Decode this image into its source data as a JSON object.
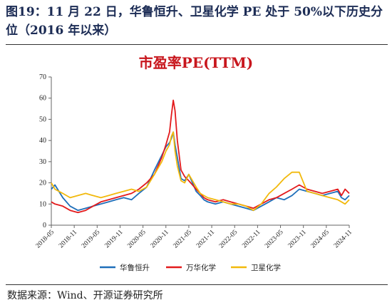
{
  "figure_title": "图19：11 月 22 日，华鲁恒升、卫星化学 PE 处于 50%以下历史分位（2016 年以来）",
  "source": "数据来源：Wind、开源证券研究所",
  "colors": {
    "s1": "#1f6fba",
    "s2": "#e31a1c",
    "s3": "#f2b90c",
    "title": "#c8161d"
  },
  "chart_data": {
    "type": "line",
    "title": "市盈率PE(TTM)",
    "xlabel": "",
    "ylabel": "",
    "ylim": [
      0,
      70
    ],
    "yticks": [
      0,
      10,
      20,
      30,
      40,
      50,
      60,
      70
    ],
    "xlim": [
      2018.42,
      2024.92
    ],
    "xticks": [
      "2018-05",
      "2018-11",
      "2019-05",
      "2019-11",
      "2020-05",
      "2020-11",
      "2021-05",
      "2021-11",
      "2022-05",
      "2022-11",
      "2023-05",
      "2023-11",
      "2024-05",
      "2024-11"
    ],
    "grid": false,
    "legend": "bottom",
    "x": [
      2018.42,
      2018.5,
      2018.67,
      2018.83,
      2019.0,
      2019.17,
      2019.33,
      2019.5,
      2019.67,
      2019.83,
      2020.0,
      2020.17,
      2020.33,
      2020.5,
      2020.67,
      2020.83,
      2020.92,
      2021.0,
      2021.04,
      2021.08,
      2021.12,
      2021.17,
      2021.25,
      2021.33,
      2021.42,
      2021.5,
      2021.58,
      2021.67,
      2021.75,
      2021.83,
      2022.0,
      2022.17,
      2022.33,
      2022.5,
      2022.67,
      2022.83,
      2023.0,
      2023.17,
      2023.33,
      2023.5,
      2023.67,
      2023.83,
      2024.0,
      2024.17,
      2024.33,
      2024.5,
      2024.67,
      2024.75,
      2024.83,
      2024.92
    ],
    "series": [
      {
        "name": "华鲁恒升",
        "color": "s1",
        "values": [
          17,
          19,
          13,
          9,
          7,
          8,
          9,
          10,
          11,
          12,
          13,
          12,
          15,
          18,
          26,
          33,
          37,
          39,
          41,
          44,
          38,
          32,
          22,
          21,
          24,
          20,
          16,
          14,
          12,
          11,
          10,
          11,
          10,
          9,
          8,
          7,
          9,
          11,
          13,
          12,
          14,
          17,
          16,
          15,
          14,
          15,
          16,
          13,
          12,
          14
        ]
      },
      {
        "name": "万华化学",
        "color": "s2",
        "values": [
          11,
          10,
          9,
          7,
          6,
          7,
          9,
          11,
          12,
          13,
          14,
          15,
          17,
          20,
          24,
          32,
          38,
          44,
          52,
          59,
          54,
          40,
          26,
          23,
          21,
          19,
          17,
          15,
          13,
          12,
          11,
          12,
          11,
          10,
          9,
          8,
          10,
          12,
          13,
          15,
          17,
          19,
          17,
          16,
          15,
          16,
          17,
          14,
          17,
          15
        ]
      },
      {
        "name": "卫星化学",
        "color": "s3",
        "values": [
          20,
          17,
          15,
          13,
          14,
          15,
          14,
          13,
          14,
          15,
          16,
          17,
          16,
          18,
          24,
          30,
          35,
          38,
          42,
          44,
          35,
          28,
          21,
          20,
          24,
          21,
          18,
          15,
          14,
          13,
          12,
          11,
          10,
          10,
          9,
          7,
          10,
          15,
          18,
          22,
          25,
          25,
          16,
          15,
          14,
          13,
          12,
          11,
          10,
          12
        ]
      }
    ]
  }
}
